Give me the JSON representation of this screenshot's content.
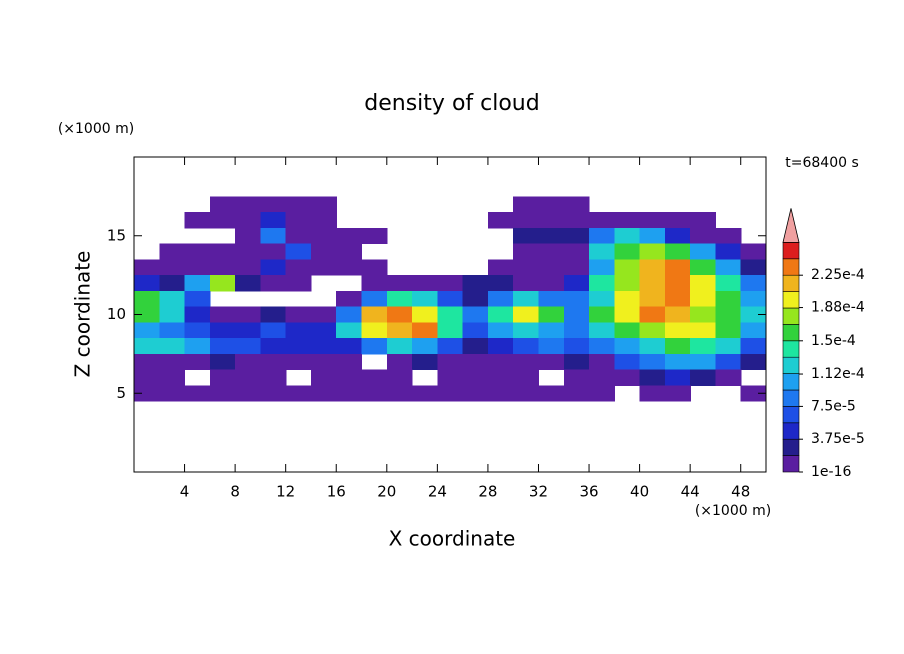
{
  "chart_data": {
    "type": "contour",
    "title": "density of cloud",
    "x_label": "X coordinate",
    "y_label": "Z coordinate",
    "x_unit": "(×1000 m)",
    "y_unit": "(×1000 m)",
    "annotation": "t=68400 s",
    "xlim": [
      0,
      50
    ],
    "ylim": [
      0,
      20
    ],
    "xticks": [
      4,
      8,
      12,
      16,
      20,
      24,
      28,
      32,
      36,
      40,
      44,
      48
    ],
    "yticks": [
      5,
      10,
      15
    ],
    "x": [
      1,
      3,
      5,
      7,
      9,
      11,
      13,
      15,
      17,
      19,
      21,
      23,
      25,
      27,
      29,
      31,
      33,
      35,
      37,
      39,
      41,
      43,
      45,
      47,
      49
    ],
    "y": [
      17,
      16,
      15,
      14,
      13,
      12,
      11,
      10,
      9,
      8,
      7,
      6,
      5
    ],
    "z": [
      [
        null,
        null,
        null,
        1e-05,
        1e-05,
        1e-05,
        1e-05,
        1e-05,
        null,
        null,
        null,
        null,
        null,
        null,
        null,
        1e-05,
        1e-05,
        1e-05,
        null,
        null,
        null,
        null,
        null,
        null,
        null
      ],
      [
        null,
        null,
        1e-05,
        1e-05,
        1e-05,
        5e-05,
        1e-05,
        1e-05,
        null,
        null,
        null,
        null,
        null,
        null,
        1e-05,
        1e-05,
        1e-05,
        1e-05,
        1e-05,
        1e-05,
        1e-05,
        1e-05,
        1e-05,
        null,
        null
      ],
      [
        null,
        null,
        null,
        null,
        1e-05,
        8e-05,
        1e-05,
        1e-05,
        1e-05,
        1e-05,
        null,
        null,
        null,
        null,
        null,
        3e-05,
        3e-05,
        3e-05,
        8e-05,
        0.00012,
        0.0001,
        5e-05,
        1e-05,
        1e-05,
        null
      ],
      [
        null,
        1e-05,
        1e-05,
        1e-05,
        1e-05,
        1e-05,
        6e-05,
        1e-05,
        1e-05,
        null,
        null,
        null,
        null,
        null,
        null,
        1e-05,
        1e-05,
        1e-05,
        0.00013,
        0.00015,
        0.00018,
        0.00015,
        0.0001,
        5e-05,
        1e-05
      ],
      [
        1e-05,
        1e-05,
        1e-05,
        1e-05,
        1e-05,
        4e-05,
        1e-05,
        1e-05,
        1e-05,
        1e-05,
        null,
        null,
        null,
        null,
        1e-05,
        1e-05,
        1e-05,
        1e-05,
        0.0001,
        0.00017,
        0.00021,
        0.00023,
        0.00016,
        0.0001,
        3e-05
      ],
      [
        5e-05,
        3e-05,
        0.0001,
        0.00018,
        3e-05,
        1e-05,
        1e-05,
        null,
        null,
        1e-05,
        1e-05,
        1e-05,
        1e-05,
        3e-05,
        2e-05,
        1e-05,
        1e-05,
        5e-05,
        0.00014,
        0.00018,
        0.00022,
        0.00024,
        0.00019,
        0.00014,
        8e-05
      ],
      [
        0.00016,
        0.00012,
        6e-05,
        null,
        null,
        null,
        null,
        null,
        1e-05,
        8e-05,
        0.00014,
        0.00012,
        6e-05,
        3e-05,
        8e-05,
        0.00013,
        9e-05,
        8e-05,
        0.00013,
        0.00019,
        0.00021,
        0.00023,
        0.00019,
        0.00015,
        0.0001
      ],
      [
        0.00015,
        0.00012,
        4e-05,
        1e-05,
        1e-05,
        3e-05,
        1e-05,
        1e-05,
        9e-05,
        0.00022,
        0.00024,
        0.0002,
        0.00014,
        8e-05,
        0.00014,
        0.0002,
        0.00015,
        9e-05,
        0.00015,
        0.00019,
        0.00023,
        0.00021,
        0.00018,
        0.00016,
        0.00012
      ],
      [
        0.00011,
        9e-05,
        6e-05,
        5e-05,
        5e-05,
        6e-05,
        4e-05,
        5e-05,
        0.00012,
        0.0002,
        0.00022,
        0.00023,
        0.00014,
        6e-05,
        0.0001,
        0.00013,
        0.0001,
        8e-05,
        0.00012,
        0.00016,
        0.00017,
        0.0002,
        0.00019,
        0.00015,
        0.00011
      ],
      [
        0.00013,
        0.00012,
        0.0001,
        7e-05,
        6e-05,
        4e-05,
        5e-05,
        4e-05,
        5e-05,
        8e-05,
        0.00013,
        0.00011,
        6e-05,
        3e-05,
        4e-05,
        6e-05,
        8e-05,
        6e-05,
        9e-05,
        0.00011,
        0.00013,
        0.00016,
        0.00014,
        0.00012,
        6e-05
      ],
      [
        1e-05,
        1e-05,
        1e-05,
        3e-05,
        1e-05,
        1e-05,
        1e-05,
        1e-05,
        1e-05,
        null,
        1e-05,
        2e-05,
        1e-05,
        1e-05,
        1e-05,
        1e-05,
        1e-05,
        3e-05,
        1e-05,
        6e-05,
        9e-05,
        0.00011,
        0.0001,
        6e-05,
        3e-05
      ],
      [
        1e-05,
        1e-05,
        null,
        1e-05,
        1e-05,
        1e-05,
        null,
        1e-05,
        1e-05,
        1e-05,
        1e-05,
        null,
        1e-05,
        1e-05,
        1e-05,
        1e-05,
        null,
        1e-05,
        1e-05,
        1e-05,
        3e-05,
        5e-05,
        3e-05,
        1e-05,
        null
      ],
      [
        1e-05,
        1e-05,
        1e-05,
        1e-05,
        1e-05,
        1e-05,
        1e-05,
        1e-05,
        1e-05,
        1e-05,
        1e-05,
        1e-05,
        1e-05,
        1e-05,
        1e-05,
        1e-05,
        1e-05,
        1e-05,
        1e-05,
        null,
        1e-05,
        1e-05,
        null,
        null,
        1e-05
      ]
    ],
    "clevels": [
      1e-16,
      1.875e-05,
      3.75e-05,
      5.625e-05,
      7.5e-05,
      9.375e-05,
      0.0001125,
      0.00013125,
      0.00015,
      0.00016875,
      0.0001875,
      0.00020625,
      0.000225,
      0.00024375,
      0.0002625
    ],
    "colors": [
      "#5a1ea0",
      "#241e8c",
      "#1e28c8",
      "#1e50e6",
      "#1e78f0",
      "#1ea0f0",
      "#1ecdd2",
      "#1ee6a0",
      "#32d23c",
      "#96e61e",
      "#f0f01e",
      "#f0b41e",
      "#f07814",
      "#dc1e1e"
    ],
    "extend_color": "#f0a0a0",
    "cticks": [
      {
        "value": 1e-16,
        "label": "1e-16"
      },
      {
        "value": 3.75e-05,
        "label": "3.75e-5"
      },
      {
        "value": 7.5e-05,
        "label": "7.5e-5"
      },
      {
        "value": 0.000112,
        "label": "1.12e-4"
      },
      {
        "value": 0.00015,
        "label": "1.5e-4"
      },
      {
        "value": 0.000188,
        "label": "1.88e-4"
      },
      {
        "value": 0.000225,
        "label": "2.25e-4"
      }
    ]
  }
}
